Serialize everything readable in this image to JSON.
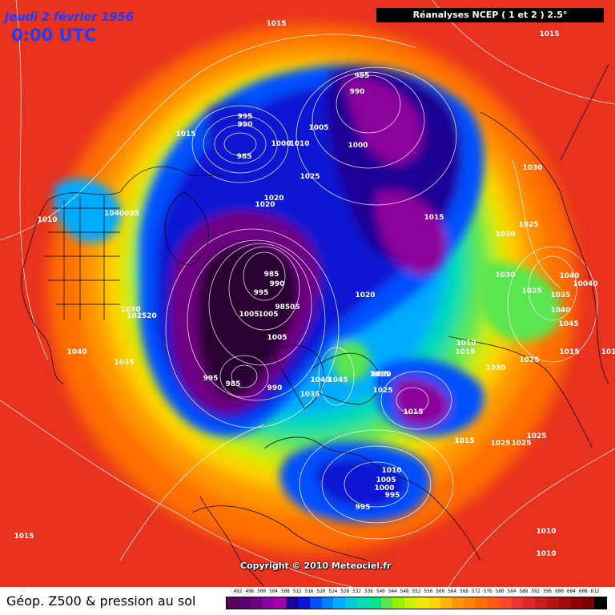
{
  "header": {
    "date": "Jeudi 2 février 1956",
    "time": "0:00 UTC",
    "source": "Réanalyses NCEP ( 1 et 2 ) 2.5°"
  },
  "copyright": "Copyright © 2010 Meteociel.fr",
  "footer": {
    "title": "Géop. Z500 & pression au sol"
  },
  "colors": {
    "scale": [
      "#5a005a",
      "#5a006e",
      "#6e0082",
      "#8c009b",
      "#a000aa",
      "#1e0096",
      "#0a14d2",
      "#0050ff",
      "#0082ff",
      "#00aaff",
      "#00c8dc",
      "#00dcb4",
      "#00e68c",
      "#5ae650",
      "#96f000",
      "#c8f000",
      "#f0e600",
      "#ffd200",
      "#ffb400",
      "#ff9600",
      "#ff8200",
      "#ff6e00",
      "#ff5a14",
      "#ff4628",
      "#f03232",
      "#dc2828",
      "#c81e1e",
      "#b41414",
      "#a00a0a",
      "#8c0000",
      "#780000",
      "#000000"
    ]
  },
  "legend": {
    "values": [
      "492",
      "496",
      "500",
      "504",
      "508",
      "512",
      "516",
      "520",
      "524",
      "528",
      "532",
      "536",
      "540",
      "544",
      "548",
      "552",
      "556",
      "560",
      "564",
      "568",
      "572",
      "576",
      "580",
      "584",
      "588",
      "592",
      "596",
      "600",
      "604",
      "608",
      "612"
    ]
  },
  "pressure_labels": [
    {
      "text": "1015"
    },
    {
      "text": "1015"
    },
    {
      "text": "995"
    },
    {
      "text": "990"
    },
    {
      "text": "995"
    },
    {
      "text": "990"
    },
    {
      "text": "985"
    },
    {
      "text": "1000"
    },
    {
      "text": "1010"
    },
    {
      "text": "1005"
    },
    {
      "text": "1000"
    },
    {
      "text": "1015"
    },
    {
      "text": "1025"
    },
    {
      "text": "1030"
    },
    {
      "text": "1020"
    },
    {
      "text": "1020"
    },
    {
      "text": "1010"
    },
    {
      "text": "1040035"
    },
    {
      "text": "1015"
    },
    {
      "text": "1030"
    },
    {
      "text": "1025"
    },
    {
      "text": "985"
    },
    {
      "text": "990"
    },
    {
      "text": "995"
    },
    {
      "text": "98505"
    },
    {
      "text": "1005"
    },
    {
      "text": "1005"
    },
    {
      "text": "1005"
    },
    {
      "text": "1030"
    },
    {
      "text": "102520"
    },
    {
      "text": "1040"
    },
    {
      "text": "1035"
    },
    {
      "text": "1020"
    },
    {
      "text": "1030"
    },
    {
      "text": "1040"
    },
    {
      "text": "10040"
    },
    {
      "text": "1025"
    },
    {
      "text": "1035"
    },
    {
      "text": "1040"
    },
    {
      "text": "1045"
    },
    {
      "text": "1010"
    },
    {
      "text": "1015"
    },
    {
      "text": "1030"
    },
    {
      "text": "1025"
    },
    {
      "text": "1015"
    },
    {
      "text": "1015"
    },
    {
      "text": "101"
    },
    {
      "text": "1030"
    },
    {
      "text": "1025"
    },
    {
      "text": "1015"
    },
    {
      "text": "1040"
    },
    {
      "text": "1045"
    },
    {
      "text": "1035"
    },
    {
      "text": "990"
    },
    {
      "text": "985"
    },
    {
      "text": "995"
    },
    {
      "text": "1015"
    },
    {
      "text": "1025"
    },
    {
      "text": "1025"
    },
    {
      "text": "1025"
    },
    {
      "text": "1010"
    },
    {
      "text": "1005"
    },
    {
      "text": "1000"
    },
    {
      "text": "995"
    },
    {
      "text": "995"
    },
    {
      "text": "1015"
    },
    {
      "text": "1010"
    },
    {
      "text": "1010"
    },
    {
      "text": "1015"
    }
  ]
}
